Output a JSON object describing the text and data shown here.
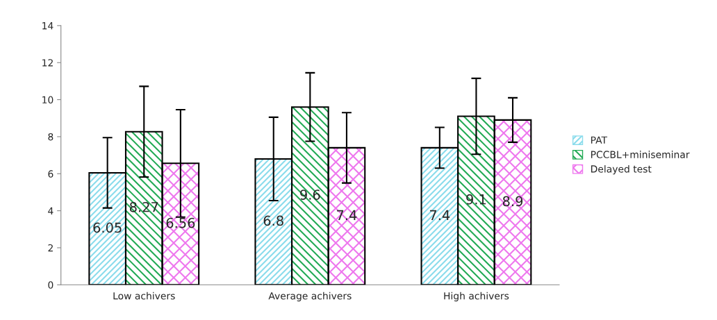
{
  "chart_data": {
    "type": "bar",
    "categories": [
      "Low achivers",
      "Average achivers",
      "High achivers"
    ],
    "series": [
      {
        "name": "PAT",
        "color": "#8adcec",
        "values": [
          6.05,
          6.8,
          7.4
        ],
        "errors": [
          1.9,
          2.25,
          1.1
        ]
      },
      {
        "name": "PCCBL+miniseminar",
        "color": "#22aa55",
        "values": [
          8.27,
          9.6,
          9.1
        ],
        "errors": [
          2.45,
          1.85,
          2.05
        ]
      },
      {
        "name": "Delayed test",
        "color": "#ee77ee",
        "values": [
          6.56,
          7.4,
          8.9
        ],
        "errors": [
          2.9,
          1.9,
          1.2
        ]
      }
    ],
    "ylim": [
      0,
      14
    ],
    "yticks": [
      0,
      2,
      4,
      6,
      8,
      10,
      12,
      14
    ],
    "data_labels": true,
    "grid": false,
    "legend": "right"
  }
}
